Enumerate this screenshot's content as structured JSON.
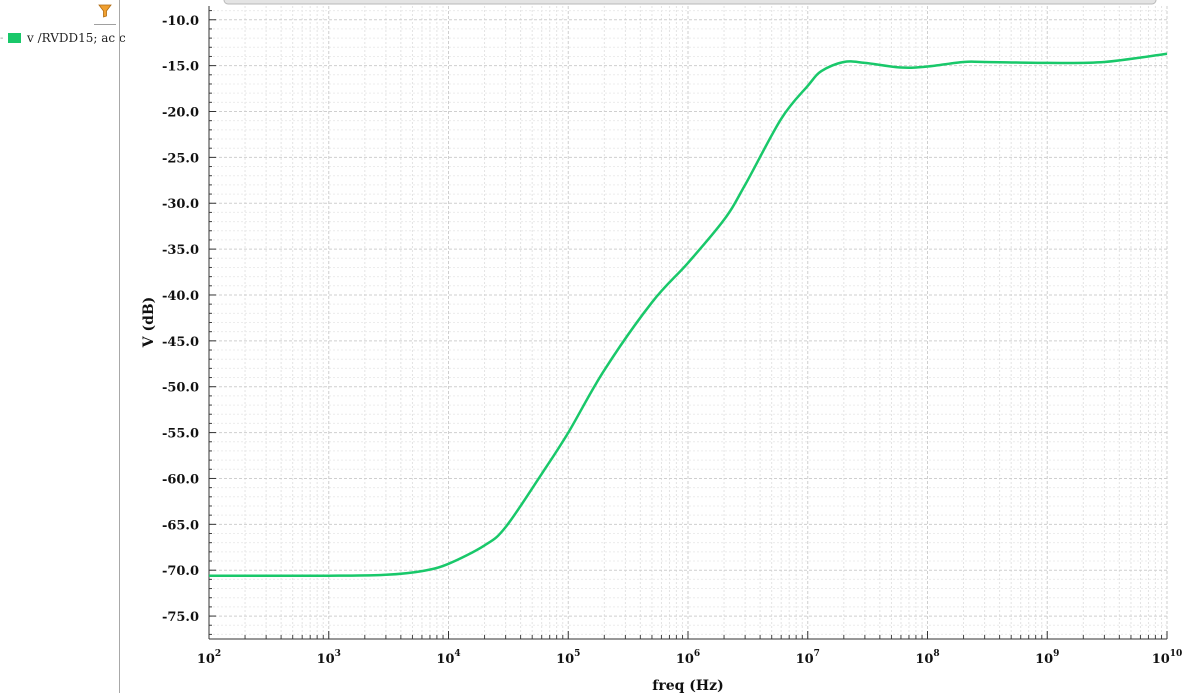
{
  "legend": {
    "items": [
      {
        "label": "v /RVDD15; ac c",
        "color": "#19c86a"
      }
    ]
  },
  "toolbar": {
    "filter_icon": "filter-funnel-icon",
    "filter_color": "#f0a030"
  },
  "chart_data": {
    "type": "line",
    "title": "",
    "xlabel": "freq (Hz)",
    "ylabel": "V (dB)",
    "xscale": "log",
    "xlim": [
      100,
      10000000000
    ],
    "ylim": [
      -77.5,
      -8.5
    ],
    "x_ticks": [
      {
        "base": "10",
        "exp": "2",
        "value": 100
      },
      {
        "base": "10",
        "exp": "3",
        "value": 1000
      },
      {
        "base": "10",
        "exp": "4",
        "value": 10000
      },
      {
        "base": "10",
        "exp": "5",
        "value": 100000
      },
      {
        "base": "10",
        "exp": "6",
        "value": 1000000
      },
      {
        "base": "10",
        "exp": "7",
        "value": 10000000
      },
      {
        "base": "10",
        "exp": "8",
        "value": 100000000
      },
      {
        "base": "10",
        "exp": "9",
        "value": 1000000000
      },
      {
        "base": "10",
        "exp": "10",
        "value": 10000000000
      }
    ],
    "y_ticks": [
      "-10.0",
      "-15.0",
      "-20.0",
      "-25.0",
      "-30.0",
      "-35.0",
      "-40.0",
      "-45.0",
      "-50.0",
      "-55.0",
      "-60.0",
      "-65.0",
      "-70.0",
      "-75.0"
    ],
    "grid": true,
    "legend_position": "left-sidebar",
    "series": [
      {
        "name": "v /RVDD15; ac c",
        "color": "#19c86a",
        "x": [
          100,
          1000,
          3000,
          6000,
          10000,
          20000,
          30000,
          60000,
          100000,
          200000,
          500000,
          1000000,
          2000000,
          3000000,
          6000000,
          10000000,
          13000000,
          20000000,
          30000000,
          60000000,
          100000000,
          200000000,
          300000000,
          1000000000,
          3000000000,
          10000000000
        ],
        "y": [
          -70.6,
          -70.6,
          -70.5,
          -70.1,
          -69.3,
          -67.3,
          -65.3,
          -59.5,
          -55.0,
          -48.2,
          -40.8,
          -36.5,
          -31.8,
          -28.0,
          -20.8,
          -17.2,
          -15.6,
          -14.6,
          -14.7,
          -15.2,
          -15.1,
          -14.6,
          -14.6,
          -14.7,
          -14.6,
          -13.7
        ]
      }
    ]
  }
}
